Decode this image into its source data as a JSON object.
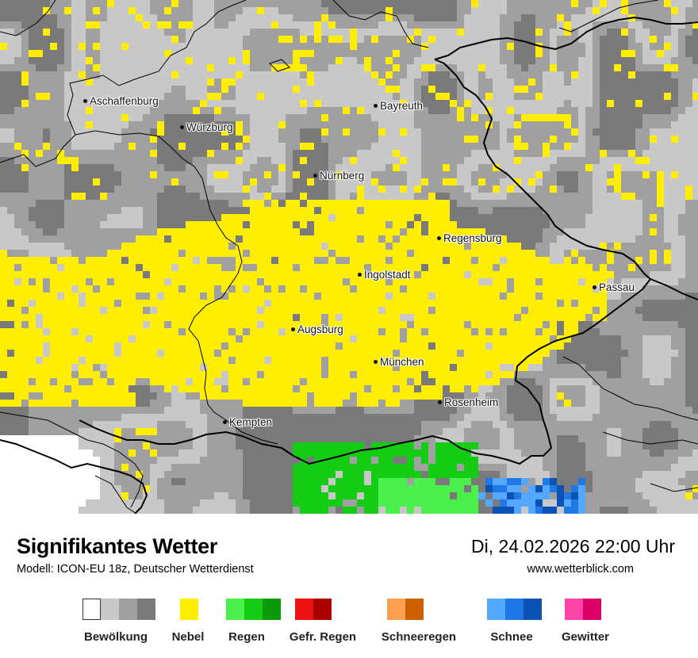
{
  "map": {
    "cities": [
      {
        "name": "Aschaffenburg"
      },
      {
        "name": "Würzburg"
      },
      {
        "name": "Bayreuth"
      },
      {
        "name": "Nürnberg"
      },
      {
        "name": "Regensburg"
      },
      {
        "name": "Ingolstadt"
      },
      {
        "name": "Passau"
      },
      {
        "name": "Augsburg"
      },
      {
        "name": "München"
      },
      {
        "name": "Rosenheim"
      },
      {
        "name": "Kempten"
      }
    ]
  },
  "footer": {
    "title": "Signifikantes Wetter",
    "subtitle": "Modell: ICON-EU 18z, Deutscher Wetterdienst",
    "datetime": "Di, 24.02.2026 22:00 Uhr",
    "website": "www.wetterblick.com"
  },
  "legend": [
    {
      "label": "Bewölkung",
      "colors": [
        "#ffffff",
        "#c8c8c8",
        "#a0a0a0",
        "#7a7a7a"
      ]
    },
    {
      "label": "Nebel",
      "colors": [
        "#ffee00"
      ]
    },
    {
      "label": "Regen",
      "colors": [
        "#4cf04c",
        "#14cc14",
        "#0a9a0a"
      ]
    },
    {
      "label": "Gefr. Regen",
      "colors": [
        "#ee1111",
        "#aa0000"
      ]
    },
    {
      "label": "Schneeregen",
      "colors": [
        "#ffa050",
        "#cc5f00"
      ]
    },
    {
      "label": "Schnee",
      "colors": [
        "#55a8ff",
        "#1f78e6",
        "#0a52b4"
      ]
    },
    {
      "label": "Gewitter",
      "colors": [
        "#ff44aa",
        "#dd0066"
      ]
    }
  ]
}
